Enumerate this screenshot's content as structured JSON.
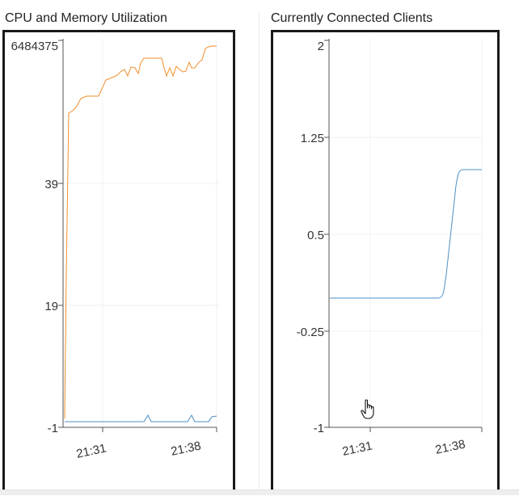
{
  "panels": {
    "left": {
      "title": "CPU and Memory Utilization"
    },
    "right": {
      "title": "Currently Connected Clients"
    }
  },
  "chart_data": [
    {
      "type": "line",
      "title": "CPU and Memory Utilization",
      "y_ticks": [
        "6484375",
        "39",
        "19",
        "-1"
      ],
      "x_ticks": [
        "21:31",
        "21:38"
      ],
      "grid": true,
      "colors": {
        "orange": "#f28e2b",
        "blue": "#4e8fc4"
      }
    },
    {
      "type": "line",
      "title": "Currently Connected Clients",
      "y_ticks": [
        "2",
        "1.25",
        "0.5",
        "-0.25",
        "-1"
      ],
      "x_ticks": [
        "21:31",
        "21:38"
      ],
      "ylim": [
        -1,
        2
      ],
      "series": [
        {
          "color": "#4e8fc4",
          "x": [
            "21:28",
            "21:36",
            "21:37",
            "21:39"
          ],
          "values": [
            0,
            0,
            1,
            1
          ]
        }
      ],
      "grid": true
    }
  ]
}
